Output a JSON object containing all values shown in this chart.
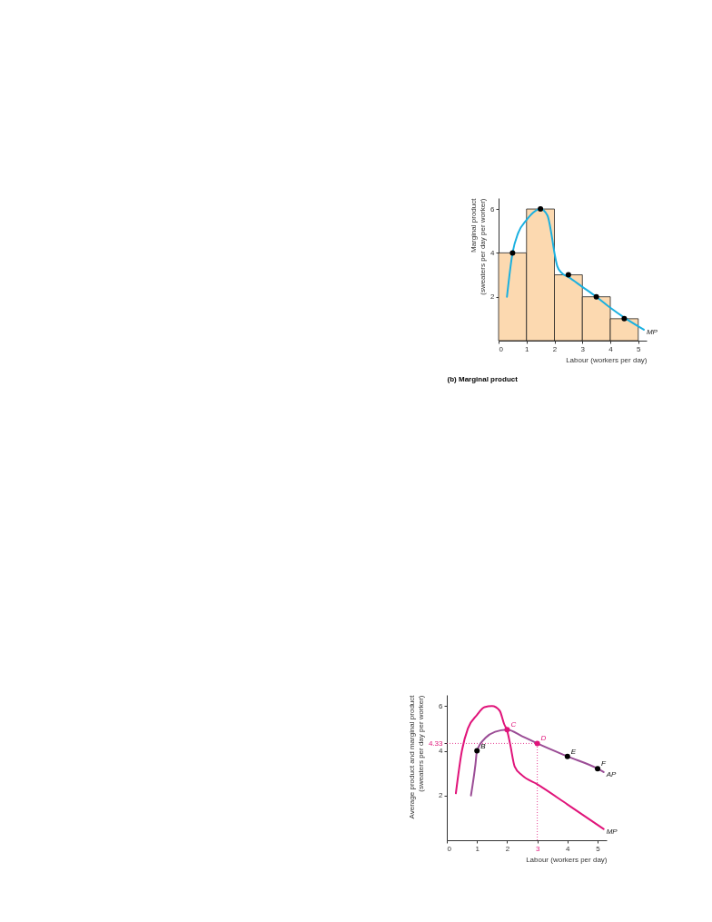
{
  "chart_data": [
    {
      "type": "histogram",
      "title": "(b) Marginal product",
      "xlabel": "Labour (workers per day)",
      "ylabel": "Marginal product\n(sweaters per day per worker)",
      "bins": [
        0,
        1,
        2,
        3,
        4,
        5
      ],
      "values": [
        4,
        6,
        3,
        2,
        1
      ],
      "color": "#fcd9b0",
      "xlim": [
        0,
        5.3
      ],
      "ylim": [
        0,
        6.5
      ],
      "xticks": [
        0,
        1,
        2,
        3,
        4,
        5
      ],
      "yticks": [
        2,
        4,
        6
      ],
      "grid": false,
      "series": [
        {
          "type": "line",
          "name": "MP",
          "color": "#1ab0e0",
          "x": [
            0.3,
            0.5,
            0.7,
            1.0,
            1.25,
            1.5,
            1.75,
            1.9,
            2.0,
            2.1,
            2.25,
            2.5,
            3.0,
            3.5,
            4.0,
            4.5,
            5.2
          ],
          "values": [
            2,
            4,
            4.9,
            5.5,
            5.85,
            6,
            5.7,
            4.8,
            4.0,
            3.4,
            3.1,
            2.9,
            2.45,
            2.0,
            1.5,
            1.05,
            0.5
          ]
        },
        {
          "type": "scatter",
          "color": "#000000",
          "x": [
            0.5,
            1.5,
            2.5,
            3.5,
            4.5
          ],
          "values": [
            4,
            6,
            3,
            2,
            1
          ]
        }
      ]
    },
    {
      "type": "line",
      "xlabel": "Labour (workers per day)",
      "ylabel": "Average product and marginal product\n(sweaters per day per worker)",
      "xlim": [
        0,
        5.3
      ],
      "ylim": [
        0,
        6.5
      ],
      "xticks": [
        0,
        1,
        2,
        3,
        4,
        5
      ],
      "yticks": [
        2,
        4,
        4.33,
        6
      ],
      "grid": false,
      "series": [
        {
          "type": "line",
          "name": "MP",
          "color": "#e0147a",
          "x": [
            0.3,
            0.5,
            0.7,
            1.0,
            1.25,
            1.5,
            1.75,
            1.9,
            2.0,
            2.1,
            2.25,
            2.5,
            3.0,
            4.0,
            5.2
          ],
          "values": [
            2.1,
            4.0,
            5.0,
            5.6,
            5.95,
            6,
            5.8,
            5.2,
            4.9,
            4.3,
            3.3,
            2.9,
            2.5,
            1.6,
            0.5
          ]
        },
        {
          "type": "line",
          "name": "AP",
          "color": "#9b4d96",
          "x": [
            0.8,
            0.95,
            1.0,
            1.3,
            1.6,
            2.0,
            2.5,
            3.0,
            4.0,
            5.0,
            5.2
          ],
          "values": [
            2,
            3.4,
            4.0,
            4.6,
            4.85,
            4.95,
            4.65,
            4.33,
            3.75,
            3.2,
            3.05
          ]
        },
        {
          "type": "scatter",
          "colors": [
            "#000000",
            "#e0147a",
            "#e0147a",
            "#000000",
            "#000000"
          ],
          "x": [
            1,
            2,
            3,
            4,
            5
          ],
          "values": [
            4,
            4.95,
            4.33,
            3.75,
            3.2
          ]
        }
      ],
      "ref_lines": [
        {
          "axis": "y",
          "value": 4.33,
          "color": "#e0147a",
          "line_style": "dotted"
        },
        {
          "axis": "x",
          "value": 3,
          "color": "#e0147a",
          "line_style": "dotted"
        }
      ],
      "annotations": [
        {
          "text": "B",
          "x": 1,
          "y": 4
        },
        {
          "text": "C",
          "x": 2,
          "y": 4.95
        },
        {
          "text": "D",
          "x": 3,
          "y": 4.33
        },
        {
          "text": "E",
          "x": 4,
          "y": 3.75
        },
        {
          "text": "F",
          "x": 5,
          "y": 3.2
        }
      ]
    }
  ]
}
